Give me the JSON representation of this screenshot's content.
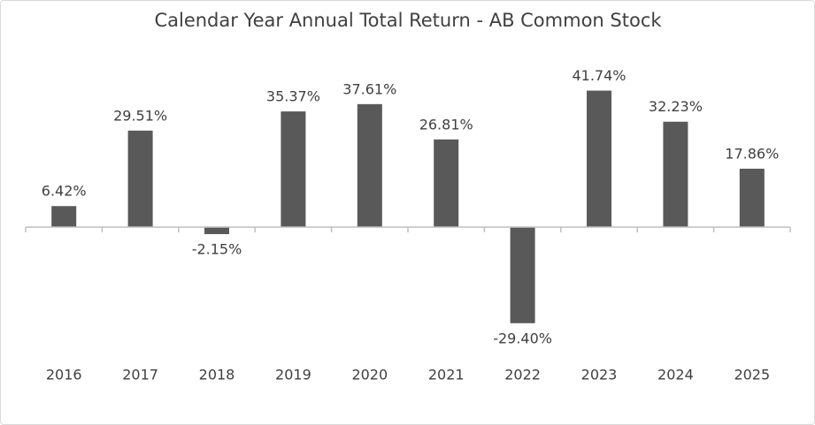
{
  "chart_data": {
    "type": "bar",
    "title": "Calendar Year Annual Total Return - AB Common Stock",
    "categories": [
      "2016",
      "2017",
      "2018",
      "2019",
      "2020",
      "2021",
      "2022",
      "2023",
      "2024",
      "2025"
    ],
    "values": [
      6.42,
      29.51,
      -2.15,
      35.37,
      37.61,
      26.81,
      -29.4,
      41.74,
      32.23,
      17.86
    ],
    "value_labels": [
      "6.42%",
      "29.51%",
      "-2.15%",
      "35.37%",
      "37.61%",
      "26.81%",
      "-29.40%",
      "41.74%",
      "32.23%",
      "17.86%"
    ],
    "color": "#595959",
    "ylim": [
      -35,
      45
    ]
  }
}
